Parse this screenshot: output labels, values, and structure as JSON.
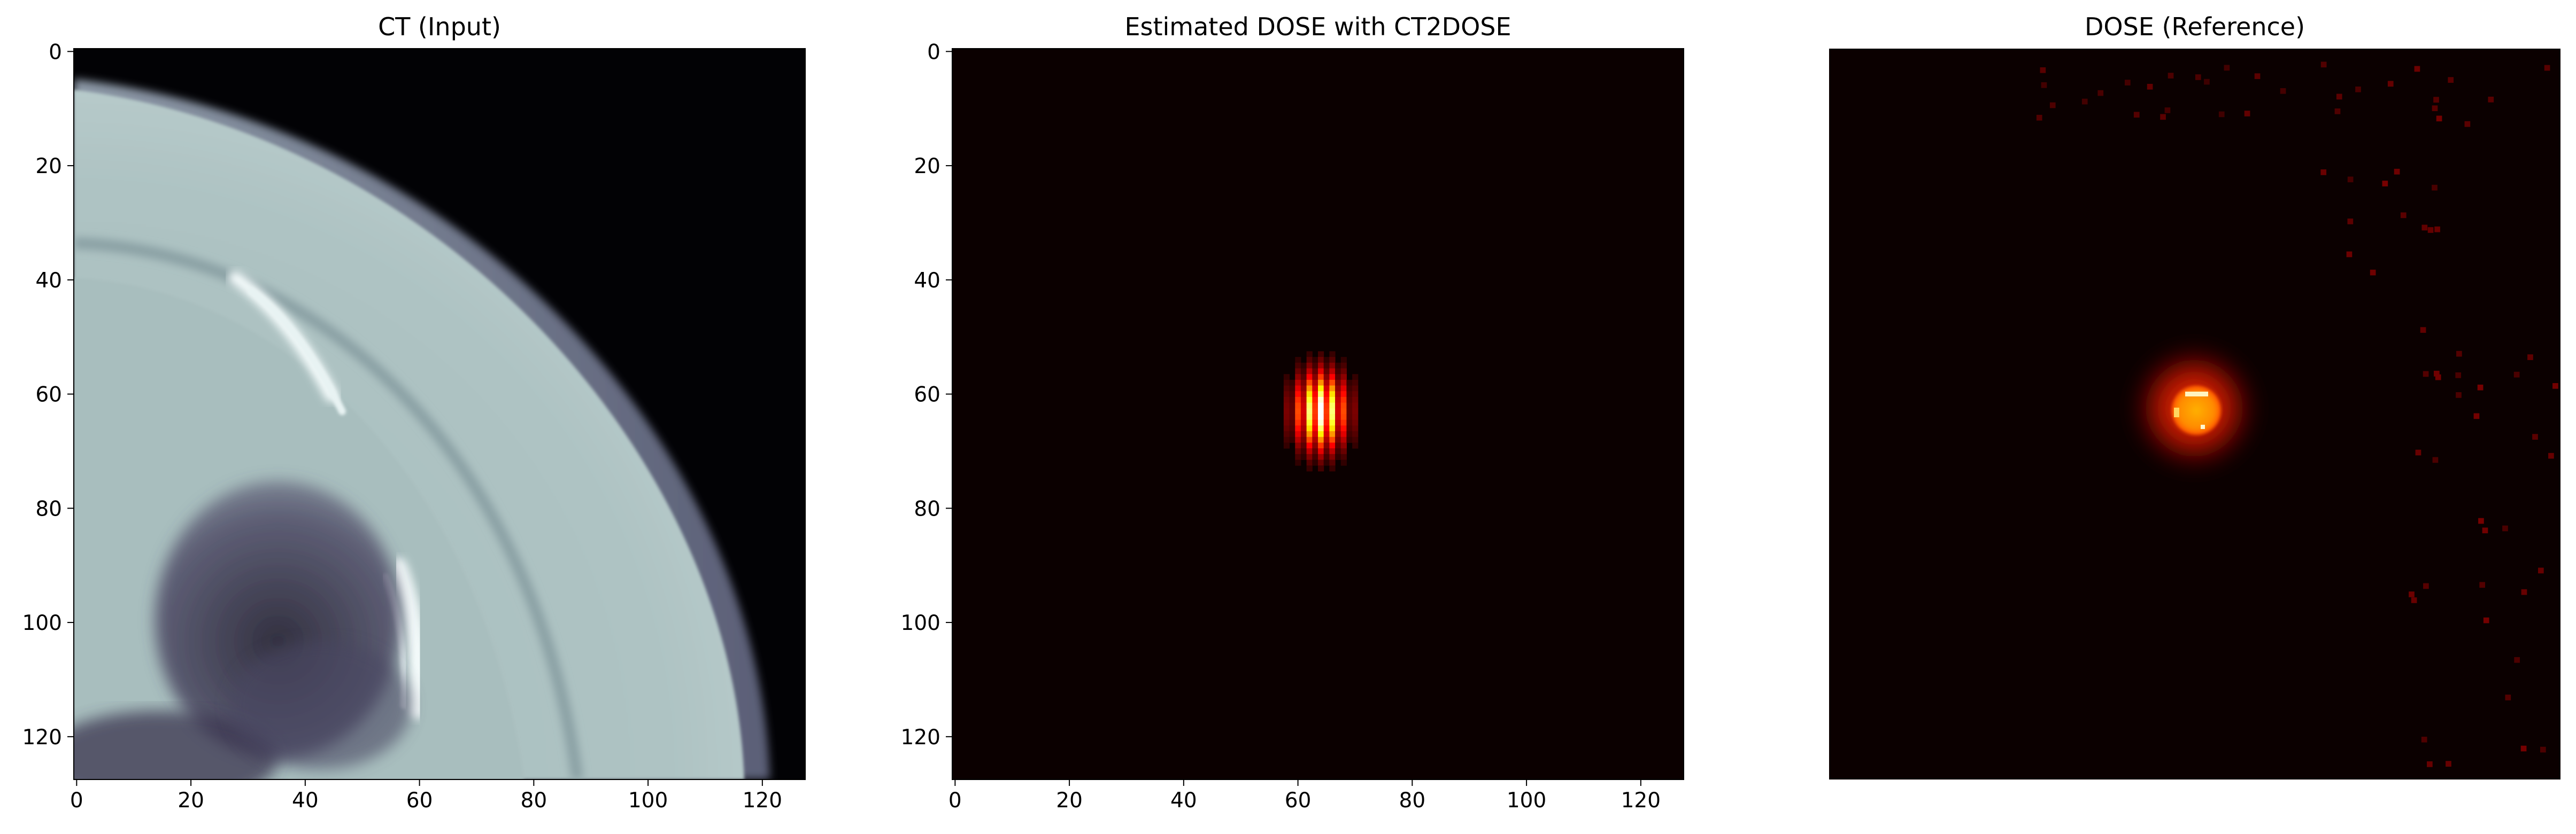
{
  "chart_data": [
    {
      "type": "heatmap",
      "title": "CT (Input)",
      "colormap": "bone",
      "xlim": [
        0,
        127
      ],
      "ylim": [
        127,
        0
      ],
      "xticks": [
        "0",
        "20",
        "40",
        "60",
        "80",
        "100",
        "120"
      ],
      "yticks": [
        "0",
        "20",
        "40",
        "60",
        "80",
        "100",
        "120"
      ],
      "axes_visible": true
    },
    {
      "type": "heatmap",
      "title": "Estimated DOSE with CT2DOSE",
      "colormap": "hot",
      "xlim": [
        0,
        127
      ],
      "ylim": [
        127,
        0
      ],
      "xticks": [
        "0",
        "20",
        "40",
        "60",
        "80",
        "100",
        "120"
      ],
      "yticks": [
        "0",
        "20",
        "40",
        "60",
        "80",
        "100",
        "120"
      ],
      "axes_visible": true,
      "hotspot_center": [
        64,
        63
      ]
    },
    {
      "type": "heatmap",
      "title": "DOSE (Reference)",
      "colormap": "hot",
      "xlim": [
        0,
        127
      ],
      "ylim": [
        127,
        0
      ],
      "axes_visible": false,
      "hotspot_center": [
        64,
        63
      ]
    }
  ]
}
